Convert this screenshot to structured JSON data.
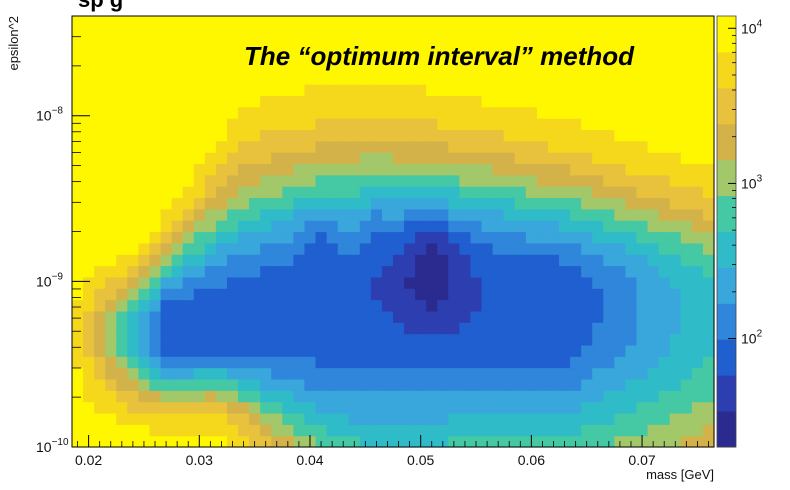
{
  "chart_data": {
    "type": "heatmap",
    "overlay_title": "The “optimum interval” method",
    "clipped_top_title": "sp  g",
    "xlabel": "mass [GeV]",
    "ylabel": "epsilon^2",
    "x_range": [
      0.0185,
      0.0765
    ],
    "y_range": [
      1e-10,
      4e-08
    ],
    "y_scale": "log",
    "x_ticks": [
      {
        "value": 0.02,
        "label": "0.02"
      },
      {
        "value": 0.03,
        "label": "0.03"
      },
      {
        "value": 0.04,
        "label": "0.04"
      },
      {
        "value": 0.05,
        "label": "0.05"
      },
      {
        "value": 0.06,
        "label": "0.06"
      },
      {
        "value": 0.07,
        "label": "0.07"
      }
    ],
    "y_ticks": [
      {
        "value": 1e-10,
        "base": "10",
        "exp": "−10"
      },
      {
        "value": 1e-09,
        "base": "10",
        "exp": "−9"
      },
      {
        "value": 1e-08,
        "base": "10",
        "exp": "−8"
      }
    ],
    "z_scale": "log",
    "z_range": [
      20,
      12000
    ],
    "z_ticks": [
      {
        "value": 100,
        "base": "10",
        "exp": "2"
      },
      {
        "value": 1000,
        "base": "10",
        "exp": "3"
      },
      {
        "value": 10000,
        "base": "10",
        "exp": "4"
      }
    ],
    "colormap": [
      "#2b2a8e",
      "#2d3fb0",
      "#1f5fd0",
      "#2f86db",
      "#39a7dc",
      "#2fbcc8",
      "#45c8a4",
      "#a3c86a",
      "#d4b24a",
      "#e8c23c",
      "#f5d81c",
      "#fff700"
    ],
    "grid": false,
    "legend": "colorbar-right",
    "description_regions": {
      "background_level": 10000,
      "min_level": 60,
      "min_at_mass": 0.051,
      "min_at_eps2": 1.6e-09
    }
  }
}
